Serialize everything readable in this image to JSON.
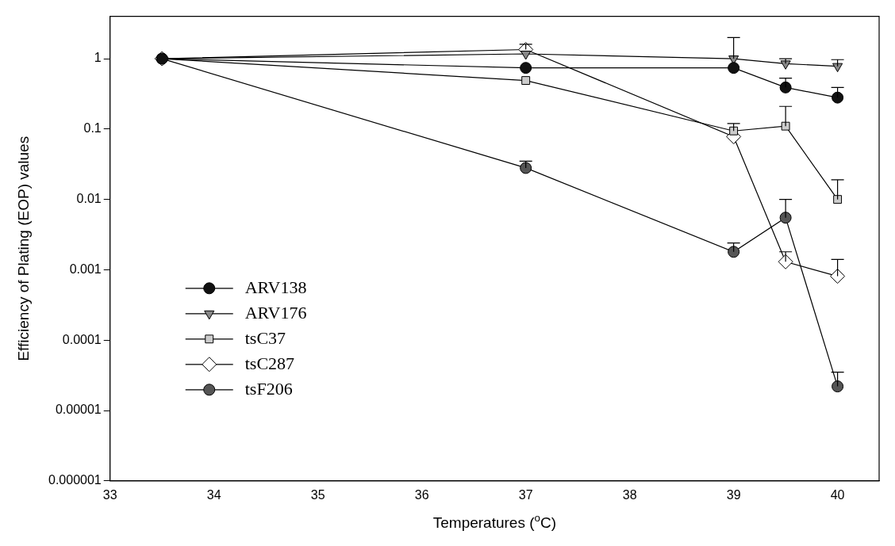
{
  "chart_data": {
    "type": "line",
    "xlabel": "Temperatures ($^{o}$C)",
    "ylabel": "Efficiency of Plating (EOP) values",
    "log": "y",
    "xlim": [
      33,
      40.4
    ],
    "xticks": [
      33,
      34,
      35,
      36,
      37,
      38,
      39,
      40
    ],
    "ylim": [
      1e-06,
      4
    ],
    "yticks": [
      {
        "value": 1e-06,
        "label": "0.000001"
      },
      {
        "value": 1e-05,
        "label": "0.00001"
      },
      0.0001,
      0.001,
      0.01,
      0.1,
      1
    ],
    "grid": false,
    "legend": "bottom left",
    "x": [
      33.5,
      37,
      39,
      39.5,
      40
    ],
    "series": [
      {
        "name": "ARV138",
        "color": "#111111",
        "marker": "circle",
        "values": [
          1,
          0.74,
          0.74,
          0.39,
          0.28
        ],
        "errors": [
          null,
          null,
          null,
          [
            0.39,
            0.53
          ],
          [
            0.28,
            0.39
          ]
        ]
      },
      {
        "name": "ARV176",
        "color": "#888888",
        "marker": "triangle",
        "values": [
          1,
          1.17,
          1.0,
          0.85,
          0.78
        ],
        "errors": [
          null,
          null,
          [
            1.0,
            2.0
          ],
          [
            0.85,
            1.0
          ],
          [
            0.78,
            0.97
          ]
        ]
      },
      {
        "name": "tsC37",
        "color": "#cccccc",
        "marker": "square",
        "values": [
          1,
          0.49,
          0.094,
          0.11,
          0.01
        ],
        "errors": [
          null,
          null,
          [
            0.094,
            0.12
          ],
          [
            0.11,
            0.21
          ],
          [
            0.01,
            0.019
          ]
        ]
      },
      {
        "name": "tsC287",
        "color": "#ffffff",
        "marker": "diamond",
        "values": [
          1,
          1.35,
          0.078,
          0.0013,
          0.00081
        ],
        "errors": [
          null,
          [
            1.35,
            1.6
          ],
          null,
          [
            0.0013,
            0.0018
          ],
          [
            0.00081,
            0.0014
          ]
        ]
      },
      {
        "name": "tsF206",
        "color": "#555555",
        "marker": "circle",
        "values": [
          1,
          0.028,
          0.0018,
          0.0055,
          2.2e-05
        ],
        "errors": [
          null,
          [
            0.028,
            0.035
          ],
          [
            0.0018,
            0.0024
          ],
          [
            0.0055,
            0.01
          ],
          [
            2.2e-05,
            3.5e-05
          ]
        ]
      }
    ]
  }
}
